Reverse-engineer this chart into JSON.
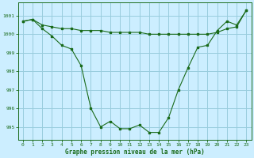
{
  "title": "Graphe pression niveau de la mer (hPa)",
  "bg_color": "#cceeff",
  "grid_color": "#99ccdd",
  "line_color": "#1a6b1a",
  "marker_color": "#1a6b1a",
  "xlim": [
    -0.5,
    23.5
  ],
  "ylim": [
    994.3,
    1001.7
  ],
  "yticks": [
    995,
    996,
    997,
    998,
    999,
    1000,
    1001
  ],
  "xticks": [
    0,
    1,
    2,
    3,
    4,
    5,
    6,
    7,
    8,
    9,
    10,
    11,
    12,
    13,
    14,
    15,
    16,
    17,
    18,
    19,
    20,
    21,
    22,
    23
  ],
  "series1_x": [
    0,
    1,
    2,
    3,
    4,
    5,
    6,
    7,
    8,
    9,
    10,
    11,
    12,
    13,
    14,
    15,
    16,
    17,
    18,
    19,
    20,
    21,
    22,
    23
  ],
  "series1_y": [
    1000.7,
    1000.8,
    1000.3,
    999.9,
    999.4,
    999.2,
    998.3,
    996.0,
    995.0,
    995.3,
    994.9,
    994.9,
    995.1,
    994.7,
    994.7,
    995.5,
    997.0,
    998.2,
    999.3,
    999.4,
    1000.2,
    1000.7,
    1000.5,
    1001.3
  ],
  "series2_x": [
    0,
    1,
    2,
    3,
    4,
    5,
    6,
    7,
    8,
    9,
    10,
    11,
    12,
    13,
    14,
    15,
    16,
    17,
    18,
    19,
    20,
    21,
    22,
    23
  ],
  "series2_y": [
    1000.7,
    1000.8,
    1000.5,
    1000.4,
    1000.3,
    1000.3,
    1000.2,
    1000.2,
    1000.2,
    1000.1,
    1000.1,
    1000.1,
    1000.1,
    1000.0,
    1000.0,
    1000.0,
    1000.0,
    1000.0,
    1000.0,
    1000.0,
    1000.1,
    1000.3,
    1000.4,
    1001.3
  ]
}
